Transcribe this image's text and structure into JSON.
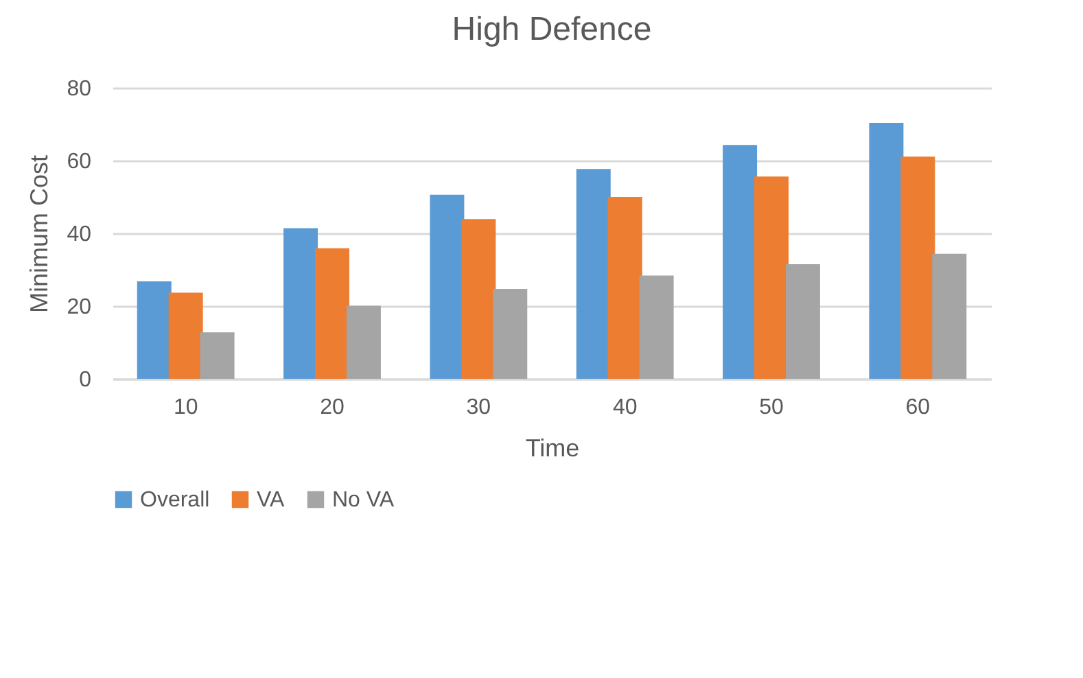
{
  "chart_data": {
    "type": "bar",
    "title": "High Defence",
    "xlabel": "Time",
    "ylabel": "Minimum Cost",
    "categories": [
      "10",
      "20",
      "30",
      "40",
      "50",
      "60"
    ],
    "series": [
      {
        "name": "Overall",
        "color": "#5b9bd5",
        "values": [
          26.8,
          41.4,
          50.6,
          57.7,
          64.3,
          70.4
        ]
      },
      {
        "name": "VA",
        "color": "#ed7d31",
        "values": [
          23.7,
          35.9,
          43.9,
          50.0,
          55.6,
          61.1
        ]
      },
      {
        "name": "No VA",
        "color": "#a5a5a5",
        "values": [
          12.8,
          20.1,
          24.7,
          28.4,
          31.5,
          34.4
        ]
      }
    ],
    "ylim": [
      0,
      80
    ],
    "yticks": [
      0,
      20,
      40,
      60,
      80
    ],
    "grid": "y",
    "legend": "bottom"
  }
}
